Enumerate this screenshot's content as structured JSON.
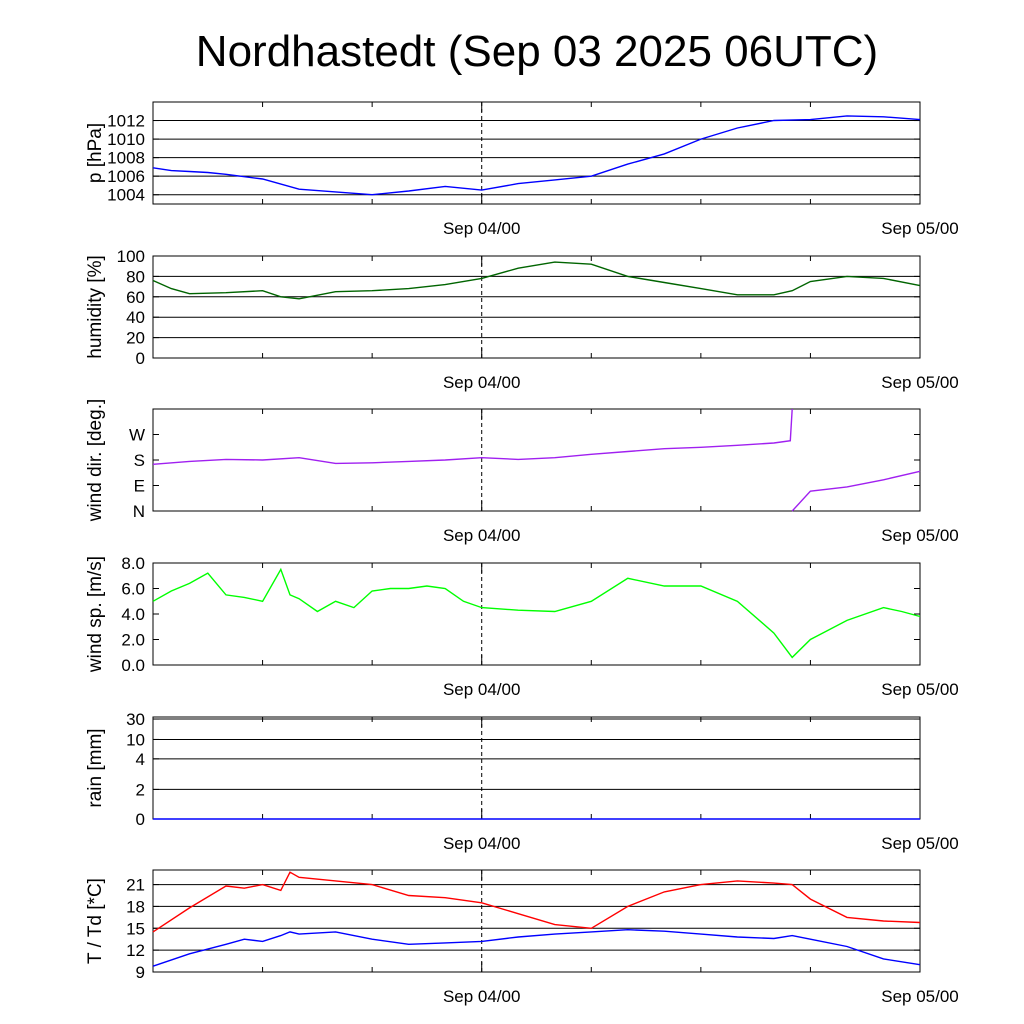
{
  "title": "Nordhastedt (Sep 03 2025 06UTC)",
  "chart_data": [
    {
      "type": "line",
      "ylabel": "p [hPa]",
      "x_range": [
        "Sep 03 06UTC",
        "Sep 05 00UTC"
      ],
      "ylim": [
        1003,
        1014
      ],
      "yticks": [
        1004,
        1006,
        1008,
        1010,
        1012
      ],
      "ytick_labels": [
        "1004",
        "1006",
        "1008",
        "1010",
        "1012"
      ],
      "grid": true,
      "xtick_labels": [
        "Sep 04/00",
        "Sep 05/00"
      ],
      "x_hours": [
        0,
        1,
        2,
        3,
        4,
        6,
        8,
        10,
        12,
        14,
        16,
        18,
        20,
        22,
        24,
        26,
        28,
        30,
        32,
        34,
        36,
        38,
        40,
        42
      ],
      "series": [
        {
          "color": "#0000ff",
          "values": [
            1006.9,
            1006.6,
            1006.5,
            1006.4,
            1006.2,
            1005.7,
            1004.6,
            1004.3,
            1004.0,
            1004.4,
            1004.9,
            1004.5,
            1005.2,
            1005.6,
            1006.0,
            1007.3,
            1008.4,
            1010.0,
            1011.2,
            1012.0,
            1012.1,
            1012.5,
            1012.4,
            1012.1
          ]
        }
      ]
    },
    {
      "type": "line",
      "ylabel": "humidity [%]",
      "ylim": [
        0,
        100
      ],
      "yticks": [
        0,
        20,
        40,
        60,
        80,
        100
      ],
      "ytick_labels": [
        "0",
        "20",
        "40",
        "60",
        "80",
        "100"
      ],
      "grid": true,
      "xtick_labels": [
        "Sep 04/00",
        "Sep 05/00"
      ],
      "x_hours": [
        0,
        1,
        2,
        4,
        6,
        7,
        8,
        10,
        12,
        14,
        16,
        18,
        20,
        22,
        24,
        26,
        28,
        30,
        32,
        34,
        35,
        36,
        38,
        40,
        42
      ],
      "series": [
        {
          "color": "#006400",
          "values": [
            76,
            68,
            63,
            64,
            66,
            60,
            58,
            65,
            66,
            68,
            72,
            78,
            88,
            94,
            92,
            80,
            74,
            68,
            62,
            62,
            66,
            75,
            80,
            78,
            71
          ]
        }
      ]
    },
    {
      "type": "line",
      "ylabel": "wind dir. [deg.]",
      "ylim": [
        0,
        360
      ],
      "yticks": [
        0,
        90,
        180,
        270
      ],
      "ytick_labels": [
        "N",
        "E",
        "S",
        "W"
      ],
      "grid": false,
      "xtick_labels": [
        "Sep 04/00",
        "Sep 05/00"
      ],
      "x_hours": [
        0,
        2,
        4,
        6,
        8,
        10,
        12,
        14,
        16,
        18,
        20,
        22,
        24,
        26,
        28,
        30,
        32,
        34,
        34.9,
        35,
        36,
        38,
        40,
        42
      ],
      "series": [
        {
          "color": "#a020f0",
          "values": [
            165,
            175,
            182,
            180,
            188,
            168,
            170,
            175,
            180,
            188,
            182,
            188,
            200,
            210,
            220,
            225,
            232,
            240,
            248,
            0,
            70,
            85,
            110,
            140
          ]
        }
      ]
    },
    {
      "type": "line",
      "ylabel": "wind sp. [m/s]",
      "ylim": [
        0,
        8
      ],
      "yticks": [
        0,
        2,
        4,
        6,
        8
      ],
      "ytick_labels": [
        "0.0",
        "2.0",
        "4.0",
        "6.0",
        "8.0"
      ],
      "grid": false,
      "xtick_labels": [
        "Sep 04/00",
        "Sep 05/00"
      ],
      "x_hours": [
        0,
        1,
        2,
        3,
        4,
        5,
        6,
        7,
        7.5,
        8,
        9,
        10,
        11,
        12,
        13,
        14,
        15,
        16,
        17,
        18,
        20,
        22,
        24,
        26,
        28,
        30,
        32,
        34,
        35,
        36,
        38,
        40,
        41,
        42
      ],
      "series": [
        {
          "color": "#00ff00",
          "values": [
            5.0,
            5.8,
            6.4,
            7.2,
            5.5,
            5.3,
            5.0,
            7.5,
            5.5,
            5.2,
            4.2,
            5.0,
            4.5,
            5.8,
            6.0,
            6.0,
            6.2,
            6.0,
            5.0,
            4.5,
            4.3,
            4.2,
            5.0,
            6.8,
            6.2,
            6.2,
            5.0,
            2.5,
            0.6,
            2.0,
            3.5,
            4.5,
            4.2,
            3.8
          ]
        }
      ]
    },
    {
      "type": "line",
      "ylabel": "rain [mm]",
      "ylim": [
        0,
        30
      ],
      "yticks": [
        0,
        2,
        4,
        10,
        30
      ],
      "ytick_labels": [
        "0",
        "2",
        "4",
        "10",
        "30"
      ],
      "grid": true,
      "xtick_labels": [
        "Sep 04/00",
        "Sep 05/00"
      ],
      "x_hours": [
        0,
        42
      ],
      "series": [
        {
          "color": "#0000ff",
          "values": [
            0,
            0
          ]
        }
      ]
    },
    {
      "type": "line",
      "ylabel": "T / Td [*C]",
      "ylim": [
        9,
        23
      ],
      "yticks": [
        9,
        12,
        15,
        18,
        21
      ],
      "ytick_labels": [
        "9",
        "12",
        "15",
        "18",
        "21"
      ],
      "grid": true,
      "xtick_labels": [
        "Sep 04/00",
        "Sep 05/00"
      ],
      "x_hours": [
        0,
        2,
        4,
        5,
        6,
        7,
        7.5,
        8,
        10,
        12,
        14,
        16,
        18,
        20,
        22,
        24,
        26,
        28,
        30,
        32,
        34,
        35,
        36,
        38,
        40,
        42
      ],
      "series": [
        {
          "color": "#ff0000",
          "values": [
            14.5,
            17.8,
            20.8,
            20.5,
            21.0,
            20.2,
            22.7,
            22.0,
            21.5,
            21.0,
            19.5,
            19.2,
            18.5,
            17.0,
            15.5,
            15.0,
            18.0,
            20.0,
            21.0,
            21.5,
            21.2,
            21.0,
            19.0,
            16.5,
            16.0,
            15.8
          ]
        },
        {
          "color": "#0000ff",
          "values": [
            9.8,
            11.5,
            12.8,
            13.5,
            13.2,
            14.0,
            14.5,
            14.2,
            14.5,
            13.5,
            12.8,
            13.0,
            13.2,
            13.8,
            14.2,
            14.5,
            14.8,
            14.6,
            14.2,
            13.8,
            13.6,
            14.0,
            13.5,
            12.5,
            10.8,
            10.0
          ]
        }
      ]
    }
  ]
}
